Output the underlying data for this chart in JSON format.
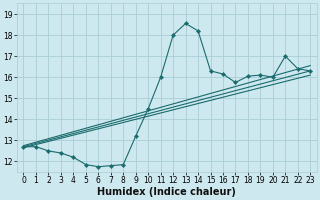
{
  "xlabel": "Humidex (Indice chaleur)",
  "bg_color": "#cde8ee",
  "grid_color": "#aacdd6",
  "line_color": "#1a6b6e",
  "xlim": [
    -0.5,
    23.5
  ],
  "ylim": [
    11.5,
    19.5
  ],
  "xticks": [
    0,
    1,
    2,
    3,
    4,
    5,
    6,
    7,
    8,
    9,
    10,
    11,
    12,
    13,
    14,
    15,
    16,
    17,
    18,
    19,
    20,
    21,
    22,
    23
  ],
  "yticks": [
    12,
    13,
    14,
    15,
    16,
    17,
    18,
    19
  ],
  "line1_x": [
    0,
    1,
    2,
    3,
    4,
    5,
    6,
    7,
    8,
    9,
    10,
    11,
    12,
    13,
    14,
    15,
    16,
    17,
    18,
    19,
    20,
    21,
    22,
    23
  ],
  "line1_y": [
    12.7,
    12.7,
    12.5,
    12.4,
    12.2,
    11.85,
    11.75,
    11.8,
    11.85,
    13.2,
    14.5,
    16.0,
    18.0,
    18.55,
    18.2,
    16.3,
    16.15,
    15.75,
    16.05,
    16.1,
    16.0,
    17.0,
    16.4,
    16.3
  ],
  "line2_x": [
    0,
    23
  ],
  "line2_y": [
    12.65,
    16.1
  ],
  "line3_x": [
    0,
    23
  ],
  "line3_y": [
    12.7,
    16.3
  ],
  "line4_x": [
    0,
    23
  ],
  "line4_y": [
    12.75,
    16.55
  ],
  "xlabel_fontsize": 7,
  "tick_fontsize": 5.5,
  "linewidth": 0.8,
  "markersize": 2.2
}
